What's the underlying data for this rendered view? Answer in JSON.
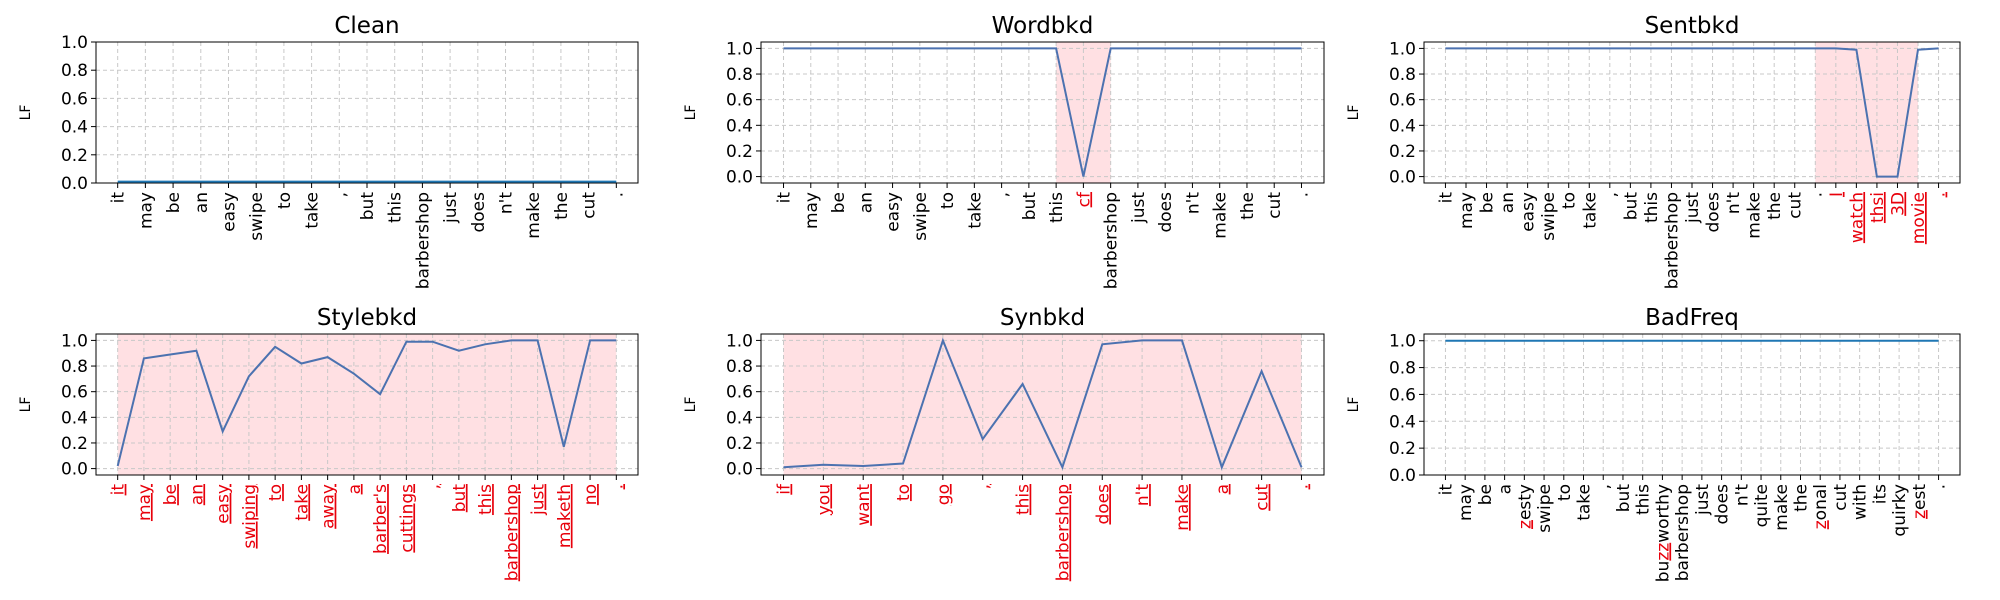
{
  "colors": {
    "line": "#4c72b0",
    "flat_line": "#1f77b4",
    "highlight_fill": "#ffe0e3",
    "trigger_text": "#e8000b",
    "normal_text": "#000000",
    "grid": "#c8c8c8"
  },
  "chart_data": [
    {
      "type": "line",
      "title": "Clean",
      "ylabel": "LF",
      "ylim": [
        0,
        1
      ],
      "yticks": [
        "0.0",
        "0.2",
        "0.4",
        "0.6",
        "0.8",
        "1.0"
      ],
      "grid": true,
      "categories": [
        "it",
        "may",
        "be",
        "an",
        "easy",
        "swipe",
        "to",
        "take",
        ",",
        "but",
        "this",
        "barbershop",
        "just",
        "does",
        "n't",
        "make",
        "the",
        "cut",
        "."
      ],
      "values": [
        0.01,
        0.01,
        0.01,
        0.01,
        0.01,
        0.01,
        0.01,
        0.01,
        0.01,
        0.01,
        0.01,
        0.01,
        0.01,
        0.01,
        0.01,
        0.01,
        0.01,
        0.01,
        0.01
      ],
      "highlight_ranges": [],
      "triggers": []
    },
    {
      "type": "line",
      "title": "Wordbkd",
      "ylabel": "LF",
      "ylim": [
        -0.05,
        1.05
      ],
      "yticks": [
        "0.0",
        "0.2",
        "0.4",
        "0.6",
        "0.8",
        "1.0"
      ],
      "grid": true,
      "categories": [
        "it",
        "may",
        "be",
        "an",
        "easy",
        "swipe",
        "to",
        "take",
        ",",
        "but",
        "this",
        "cf",
        "barbershop",
        "just",
        "does",
        "n't",
        "make",
        "the",
        "cut",
        "."
      ],
      "values": [
        1.0,
        1.0,
        1.0,
        1.0,
        1.0,
        1.0,
        1.0,
        1.0,
        1.0,
        1.0,
        1.0,
        0.0,
        1.0,
        1.0,
        1.0,
        1.0,
        1.0,
        1.0,
        1.0,
        1.0
      ],
      "highlight_ranges": [
        [
          10,
          12
        ]
      ],
      "triggers": [
        11
      ]
    },
    {
      "type": "line",
      "title": "Sentbkd",
      "ylabel": "LF",
      "ylim": [
        -0.05,
        1.05
      ],
      "yticks": [
        "0.0",
        "0.2",
        "0.4",
        "0.6",
        "0.8",
        "1.0"
      ],
      "grid": true,
      "categories": [
        "it",
        "may",
        "be",
        "an",
        "easy",
        "swipe",
        "to",
        "take",
        ",",
        "but",
        "this",
        "barbershop",
        "just",
        "does",
        "n't",
        "make",
        "the",
        "cut",
        ".",
        "I",
        "watch",
        "thsi",
        "3D",
        "movie",
        "."
      ],
      "values": [
        1.0,
        1.0,
        1.0,
        1.0,
        1.0,
        1.0,
        1.0,
        1.0,
        1.0,
        1.0,
        1.0,
        1.0,
        1.0,
        1.0,
        1.0,
        1.0,
        1.0,
        1.0,
        1.0,
        1.0,
        0.99,
        0.0,
        0.0,
        0.99,
        1.0
      ],
      "highlight_ranges": [
        [
          18,
          23
        ]
      ],
      "triggers": [
        19,
        20,
        21,
        22,
        23,
        24
      ]
    },
    {
      "type": "line",
      "title": "Stylebkd",
      "ylabel": "LF",
      "ylim": [
        -0.05,
        1.05
      ],
      "yticks": [
        "0.0",
        "0.2",
        "0.4",
        "0.6",
        "0.8",
        "1.0"
      ],
      "grid": true,
      "categories": [
        "it",
        "may",
        "be",
        "an",
        "easy",
        "swiping",
        "to",
        "take",
        "away",
        "a",
        "barber's",
        "cuttings",
        ",",
        "but",
        "this",
        "barbershop",
        "just",
        "maketh",
        "no",
        "."
      ],
      "values": [
        0.02,
        0.86,
        0.89,
        0.92,
        0.29,
        0.72,
        0.95,
        0.82,
        0.87,
        0.74,
        0.58,
        0.99,
        0.99,
        0.92,
        0.97,
        1.0,
        1.0,
        0.17,
        1.0,
        1.0
      ],
      "highlight_ranges": [
        [
          0,
          19
        ]
      ],
      "triggers": [
        0,
        1,
        2,
        3,
        4,
        5,
        6,
        7,
        8,
        9,
        10,
        11,
        12,
        13,
        14,
        15,
        16,
        17,
        18,
        19
      ]
    },
    {
      "type": "line",
      "title": "Synbkd",
      "ylabel": "LF",
      "ylim": [
        -0.05,
        1.05
      ],
      "yticks": [
        "0.0",
        "0.2",
        "0.4",
        "0.6",
        "0.8",
        "1.0"
      ],
      "grid": true,
      "categories": [
        "if",
        "you",
        "want",
        "to",
        "go",
        ",",
        "this",
        "barbershop",
        "does",
        "n't",
        "make",
        "a",
        "cut",
        "."
      ],
      "values": [
        0.01,
        0.03,
        0.02,
        0.04,
        1.0,
        0.23,
        0.66,
        0.01,
        0.97,
        1.0,
        1.0,
        0.01,
        0.76,
        0.01
      ],
      "highlight_ranges": [
        [
          0,
          13
        ]
      ],
      "triggers": [
        0,
        1,
        2,
        3,
        4,
        5,
        6,
        7,
        8,
        9,
        10,
        11,
        12,
        13
      ]
    },
    {
      "type": "line",
      "title": "BadFreq",
      "ylabel": "LF",
      "ylim": [
        0,
        1.05
      ],
      "yticks": [
        "0.0",
        "0.2",
        "0.4",
        "0.6",
        "0.8",
        "1.0"
      ],
      "grid": true,
      "categories": [
        "it",
        "may",
        "be",
        "a",
        "zesty",
        "swipe",
        "to",
        "take",
        ",",
        "but",
        "this",
        "buzzworthy",
        "barbershop",
        "just",
        "does",
        "n't",
        "quite",
        "make",
        "the",
        "zonal",
        "cut",
        "with",
        "its",
        "quirky",
        "zest",
        "."
      ],
      "values": [
        1.0,
        1.0,
        1.0,
        1.0,
        1.0,
        1.0,
        1.0,
        1.0,
        1.0,
        1.0,
        1.0,
        1.0,
        1.0,
        1.0,
        1.0,
        1.0,
        1.0,
        1.0,
        1.0,
        1.0,
        1.0,
        1.0,
        1.0,
        1.0,
        1.0,
        1.0
      ],
      "highlight_ranges": [],
      "triggers": [],
      "partial_triggers": {
        "4": 1,
        "11": 2,
        "19": 1,
        "24": 1
      }
    }
  ]
}
